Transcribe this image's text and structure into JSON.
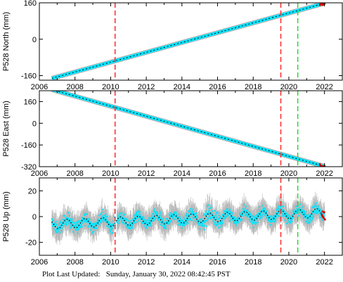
{
  "chart_data": [
    {
      "type": "scatter",
      "ylabel": "P528 North (mm)",
      "xlim": [
        2006,
        2023
      ],
      "ylim": [
        -180,
        160
      ],
      "x_ticks": [
        2006,
        2008,
        2010,
        2012,
        2014,
        2016,
        2018,
        2020,
        2022
      ],
      "y_ticks": [
        -160,
        0,
        160
      ],
      "series": [
        {
          "color": "#00e5ff",
          "x": [
            2006.7,
            2022.0
          ],
          "y": [
            -172,
            158
          ]
        }
      ],
      "vlines": [
        {
          "x": 2010.25,
          "color": "#ff2a2a"
        },
        {
          "x": 2019.55,
          "color": "#ff2a2a"
        },
        {
          "x": 2020.5,
          "color": "#22dd22"
        }
      ]
    },
    {
      "type": "scatter",
      "ylabel": "P528 East (mm)",
      "xlim": [
        2006,
        2023
      ],
      "ylim": [
        -320,
        240
      ],
      "x_ticks": [
        2006,
        2008,
        2010,
        2012,
        2014,
        2016,
        2018,
        2020,
        2022
      ],
      "y_ticks": [
        -320,
        -160,
        0,
        160
      ],
      "series": [
        {
          "color": "#00e5ff",
          "x": [
            2006.7,
            2022.0
          ],
          "y": [
            248,
            -318
          ]
        }
      ],
      "vlines": [
        {
          "x": 2010.25,
          "color": "#ff2a2a"
        },
        {
          "x": 2019.55,
          "color": "#ff2a2a"
        },
        {
          "x": 2020.5,
          "color": "#22dd22"
        }
      ]
    },
    {
      "type": "scatter",
      "ylabel": "P528 Up (mm)",
      "xlim": [
        2006,
        2023
      ],
      "ylim": [
        -30,
        30
      ],
      "x_ticks": [
        2006,
        2008,
        2010,
        2012,
        2014,
        2016,
        2018,
        2020,
        2022
      ],
      "y_ticks": [
        -20,
        0,
        20
      ],
      "series": [
        {
          "color": "#00e5ff",
          "x_range": [
            2006.7,
            2022.0
          ],
          "trend_start": -6,
          "trend_end": 3,
          "seasonal_amplitude": 3.5,
          "scatter_amplitude": 7
        }
      ],
      "vlines": [
        {
          "x": 2010.25,
          "color": "#ff2a2a"
        },
        {
          "x": 2019.55,
          "color": "#ff2a2a"
        },
        {
          "x": 2020.5,
          "color": "#22dd22"
        }
      ]
    }
  ],
  "footer": {
    "label": "Plot Last Updated:",
    "timestamp": "Sunday, January 30, 2022 08:42:45 PST"
  },
  "colors": {
    "data": "#00e5ff",
    "error_bars": "#b8b8b8",
    "model": "#000000",
    "recent": "#d40000",
    "event_line": "#ff2a2a",
    "equipment_line": "#22dd22"
  }
}
